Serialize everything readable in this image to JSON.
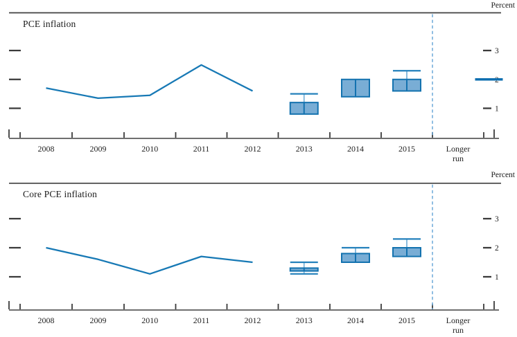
{
  "figure": {
    "background": "#ffffff"
  },
  "chart_data": [
    {
      "type": "line",
      "panel": "top",
      "title": "PCE inflation",
      "unit_label": "Percent",
      "x_categories": [
        "2008",
        "2009",
        "2010",
        "2011",
        "2012",
        "2013",
        "2014",
        "2015",
        "Longer\nrun"
      ],
      "yticks": [
        "1",
        "2",
        "3"
      ],
      "ylim": [
        0,
        4.35
      ],
      "grid": false,
      "history": {
        "x": [
          "2008",
          "2009",
          "2010",
          "2011",
          "2012"
        ],
        "values": [
          1.7,
          1.35,
          1.45,
          2.5,
          1.6
        ]
      },
      "projections": [
        {
          "x": "2013",
          "central_tendency": [
            0.8,
            1.2
          ],
          "range": [
            0.8,
            1.5
          ]
        },
        {
          "x": "2014",
          "central_tendency": [
            1.4,
            2.0
          ],
          "range": [
            1.4,
            2.0
          ]
        },
        {
          "x": "2015",
          "central_tendency": [
            1.6,
            2.0
          ],
          "range": [
            1.6,
            2.3
          ]
        }
      ],
      "longer_run": 2.0
    },
    {
      "type": "line",
      "panel": "bottom",
      "title": "Core PCE inflation",
      "unit_label": "Percent",
      "x_categories": [
        "2008",
        "2009",
        "2010",
        "2011",
        "2012",
        "2013",
        "2014",
        "2015",
        "Longer\nrun"
      ],
      "yticks": [
        "1",
        "2",
        "3"
      ],
      "ylim": [
        0,
        4.35
      ],
      "grid": false,
      "history": {
        "x": [
          "2008",
          "2009",
          "2010",
          "2011",
          "2012"
        ],
        "values": [
          2.0,
          1.6,
          1.1,
          1.7,
          1.5
        ]
      },
      "projections": [
        {
          "x": "2013",
          "central_tendency": [
            1.2,
            1.3
          ],
          "range": [
            1.1,
            1.5
          ]
        },
        {
          "x": "2014",
          "central_tendency": [
            1.5,
            1.8
          ],
          "range": [
            1.5,
            2.0
          ]
        },
        {
          "x": "2015",
          "central_tendency": [
            1.7,
            2.0
          ],
          "range": [
            1.7,
            2.3
          ]
        }
      ],
      "longer_run": null
    }
  ],
  "colors": {
    "history_line": "#1779b5",
    "box_fill": "#79add5",
    "box_border": "#1372af",
    "whisker_cap": "#2380bb",
    "whisker_stem": "#85b9dc",
    "longer_run_line": "#0f6fb0",
    "divider": "#6ca9d9",
    "frame": "#3f3f3f",
    "axis": "#6f6f6f",
    "tick": "#3a3a3a",
    "text": "#222222"
  }
}
